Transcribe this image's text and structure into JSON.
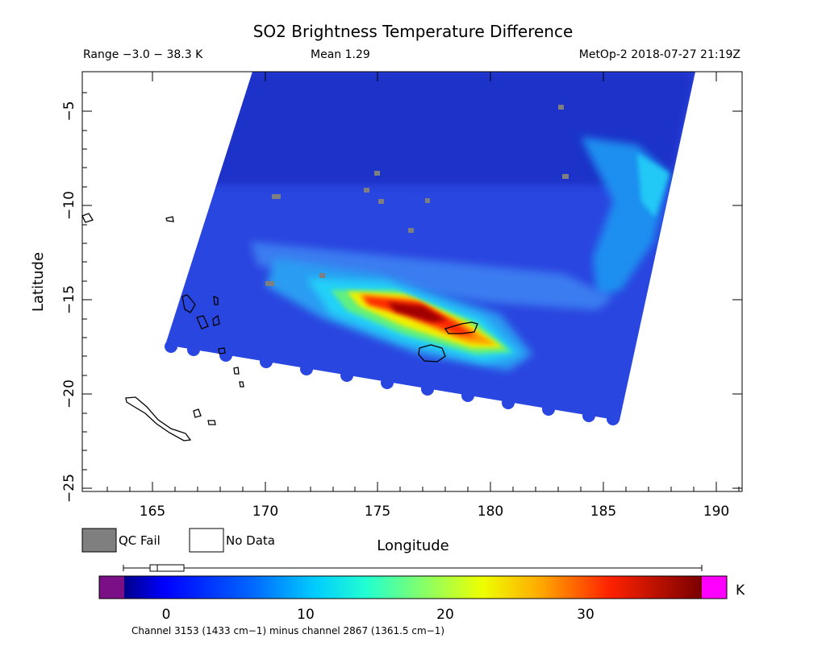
{
  "header": {
    "title": "SO2 Brightness Temperature Difference",
    "range": "Range −3.0 − 38.3 K",
    "mean": "Mean 1.29",
    "satellite_time": "MetOp-2 2018-07-27 21:19Z"
  },
  "axes": {
    "xlabel": "Longitude",
    "ylabel": "Latitude",
    "x_ticks": [
      "165",
      "170",
      "175",
      "180",
      "185",
      "190"
    ],
    "y_ticks": [
      "−5",
      "−10",
      "−15",
      "−20",
      "−25"
    ]
  },
  "legend": {
    "qc_fail": "QC Fail",
    "no_data": "No Data"
  },
  "colorbar": {
    "unit": "K",
    "ticks": [
      "0",
      "10",
      "20",
      "30"
    ],
    "caption": "Channel 3153 (1433 cm−1) minus channel 2867 (1361.5 cm−1)",
    "colors": {
      "under": "#7b0f86",
      "over": "#ff00ff",
      "qc_fail": "#7f7f7f",
      "background_low": "#1a3fd6"
    }
  },
  "chart_data": {
    "type": "heatmap",
    "title": "SO2 Brightness Temperature Difference",
    "xlabel": "Longitude",
    "ylabel": "Latitude",
    "xlim": [
      162,
      191.8
    ],
    "ylim": [
      -25.5,
      -3
    ],
    "value_range": [
      -3.0,
      38.3
    ],
    "mean": 1.29,
    "units": "K",
    "swath_corners": [
      [
        168.2,
        -3.1
      ],
      [
        187.5,
        -3.1
      ],
      [
        186.2,
        -21.4
      ],
      [
        162.5,
        -17.3
      ]
    ],
    "so2_plume": [
      {
        "lon": 175.3,
        "lat": -15.1,
        "value": 33
      },
      {
        "lon": 176.6,
        "lat": -15.5,
        "value": 37
      },
      {
        "lon": 177.8,
        "lat": -16.0,
        "value": 34
      },
      {
        "lon": 178.8,
        "lat": -16.7,
        "value": 31
      },
      {
        "lon": 180.0,
        "lat": -17.2,
        "value": 27
      },
      {
        "lon": 181.0,
        "lat": -17.7,
        "value": 24
      }
    ],
    "qc_fail_points": [
      {
        "lon": 183.6,
        "lat": -4.7
      },
      {
        "lon": 175.6,
        "lat": -8.3
      },
      {
        "lon": 183.8,
        "lat": -8.5
      },
      {
        "lon": 175.0,
        "lat": -9.1
      },
      {
        "lon": 170.6,
        "lat": -9.6
      },
      {
        "lon": 175.7,
        "lat": -9.8
      },
      {
        "lon": 177.8,
        "lat": -9.7
      },
      {
        "lon": 176.8,
        "lat": -11.3
      },
      {
        "lon": 172.9,
        "lat": -13.8
      },
      {
        "lon": 170.2,
        "lat": -14.6
      }
    ]
  }
}
